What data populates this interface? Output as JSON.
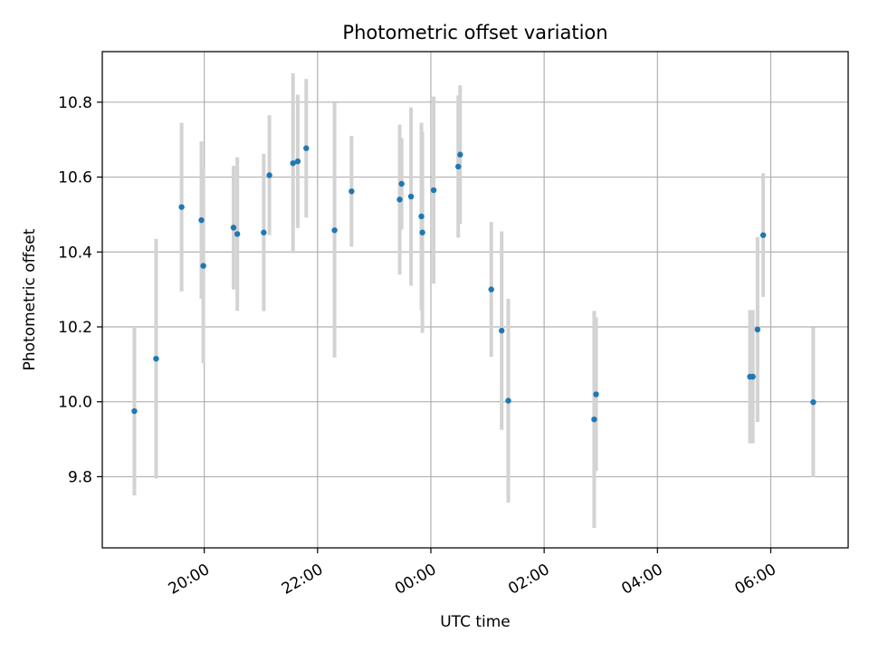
{
  "chart_data": {
    "type": "scatter",
    "title": "Photometric offset variation",
    "xlabel": "UTC time",
    "ylabel": "Photometric offset",
    "x_ticks": [
      "20:00",
      "22:00",
      "00:00",
      "02:00",
      "04:00",
      "06:00"
    ],
    "y_ticks": [
      "9.8",
      "10.0",
      "10.2",
      "10.4",
      "10.6",
      "10.8"
    ],
    "xlim": [
      "18:12",
      "07:22"
    ],
    "ylim": [
      9.61,
      10.935
    ],
    "grid": true,
    "colors": {
      "points": "#1f77b4",
      "error_bars": "#d3d3d3",
      "grid": "#b0b0b0"
    },
    "points": [
      {
        "x": "18:46",
        "y": 9.975,
        "err": 0.225
      },
      {
        "x": "19:09",
        "y": 10.115,
        "err": 0.32
      },
      {
        "x": "19:36",
        "y": 10.52,
        "err": 0.225
      },
      {
        "x": "19:57",
        "y": 10.485,
        "err": 0.21
      },
      {
        "x": "19:59",
        "y": 10.363,
        "err": 0.26
      },
      {
        "x": "20:31",
        "y": 10.465,
        "err": 0.165
      },
      {
        "x": "20:35",
        "y": 10.448,
        "err": 0.205
      },
      {
        "x": "21:03",
        "y": 10.452,
        "err": 0.21
      },
      {
        "x": "21:09",
        "y": 10.605,
        "err": 0.16
      },
      {
        "x": "21:34",
        "y": 10.637,
        "err": 0.24
      },
      {
        "x": "21:39",
        "y": 10.642,
        "err": 0.178
      },
      {
        "x": "21:48",
        "y": 10.677,
        "err": 0.185
      },
      {
        "x": "22:18",
        "y": 10.458,
        "err": 0.34
      },
      {
        "x": "22:36",
        "y": 10.562,
        "err": 0.148
      },
      {
        "x": "23:27",
        "y": 10.54,
        "err": 0.2
      },
      {
        "x": "23:29",
        "y": 10.582,
        "err": 0.122
      },
      {
        "x": "23:39",
        "y": 10.548,
        "err": 0.238
      },
      {
        "x": "23:50",
        "y": 10.495,
        "err": 0.25
      },
      {
        "x": "23:51",
        "y": 10.452,
        "err": 0.268
      },
      {
        "x": "00:03",
        "y": 10.565,
        "err": 0.25
      },
      {
        "x": "00:29",
        "y": 10.628,
        "err": 0.19
      },
      {
        "x": "00:31",
        "y": 10.66,
        "err": 0.185
      },
      {
        "x": "01:04",
        "y": 10.3,
        "err": 0.18
      },
      {
        "x": "01:15",
        "y": 10.19,
        "err": 0.265
      },
      {
        "x": "01:22",
        "y": 10.003,
        "err": 0.272
      },
      {
        "x": "02:53",
        "y": 9.953,
        "err": 0.29
      },
      {
        "x": "02:55",
        "y": 10.02,
        "err": 0.205
      },
      {
        "x": "05:38",
        "y": 10.067,
        "err": 0.178
      },
      {
        "x": "05:41",
        "y": 10.067,
        "err": 0.178
      },
      {
        "x": "05:46",
        "y": 10.193,
        "err": 0.247
      },
      {
        "x": "05:52",
        "y": 10.445,
        "err": 0.165
      },
      {
        "x": "06:45",
        "y": 9.999,
        "err": 0.2
      }
    ]
  }
}
